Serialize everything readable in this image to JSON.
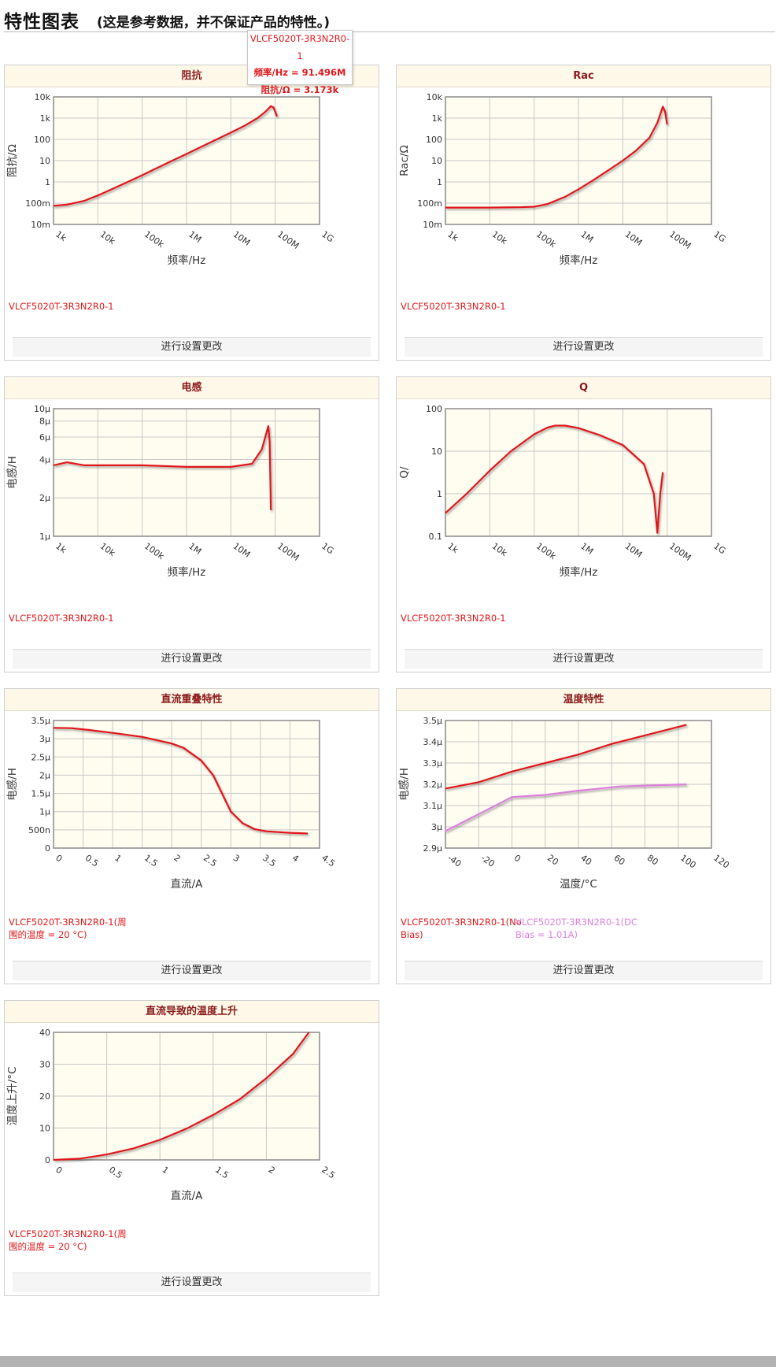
{
  "page": {
    "title": "特性图表",
    "subtitle": "(这是参考数据，并不保证产品的特性。)",
    "settings_label": "进行设置更改"
  },
  "tooltip": {
    "series": "VLCF5020T-3R3N2R0-1",
    "freq": "频率/Hz = 91.496M",
    "value": "阻抗/Ω = 3.173k"
  },
  "colors": {
    "primary": "#e0191b",
    "secondary": "#dd7fdd",
    "plot_bg": "#fffcf0",
    "grid": "#c8c8c8"
  },
  "chart_data": [
    {
      "id": "impedance",
      "type": "line",
      "title": "阻抗",
      "xlabel": "频率/Hz",
      "ylabel": "阻抗/Ω",
      "xscale": "log",
      "yscale": "log",
      "xlim": [
        1000,
        1000000000
      ],
      "ylim": [
        0.01,
        10000
      ],
      "xticks": [
        [
          1000,
          "1k"
        ],
        [
          10000,
          "10k"
        ],
        [
          100000,
          "100k"
        ],
        [
          1000000,
          "1M"
        ],
        [
          10000000,
          "10M"
        ],
        [
          100000000,
          "100M"
        ],
        [
          1000000000,
          "1G"
        ]
      ],
      "yticks": [
        [
          0.01,
          "10m"
        ],
        [
          0.1,
          "100m"
        ],
        [
          1,
          "1"
        ],
        [
          10,
          "10"
        ],
        [
          100,
          "100"
        ],
        [
          1000,
          "1k"
        ],
        [
          10000,
          "10k"
        ]
      ],
      "series": [
        {
          "name": "VLCF5020T-3R3N2R0-1",
          "color": "#e0191b",
          "points": [
            [
              1000,
              0.075
            ],
            [
              2000,
              0.085
            ],
            [
              5000,
              0.13
            ],
            [
              10000,
              0.23
            ],
            [
              20000,
              0.44
            ],
            [
              50000,
              1.05
            ],
            [
              100000,
              2.07
            ],
            [
              200000,
              4.15
            ],
            [
              500000,
              10.4
            ],
            [
              1000000,
              20.7
            ],
            [
              2000000,
              41.5
            ],
            [
              5000000,
              104
            ],
            [
              10000000,
              208
            ],
            [
              20000000,
              430
            ],
            [
              40000000,
              1000
            ],
            [
              60000000,
              2000
            ],
            [
              80000000,
              3700
            ],
            [
              91496000,
              3173
            ],
            [
              100000000,
              2000
            ],
            [
              110000000,
              1200
            ]
          ]
        }
      ]
    },
    {
      "id": "rac",
      "type": "line",
      "title": "Rac",
      "xlabel": "频率/Hz",
      "ylabel": "Rac/Ω",
      "xscale": "log",
      "yscale": "log",
      "xlim": [
        1000,
        1000000000
      ],
      "ylim": [
        0.01,
        10000
      ],
      "xticks": [
        [
          1000,
          "1k"
        ],
        [
          10000,
          "10k"
        ],
        [
          100000,
          "100k"
        ],
        [
          1000000,
          "1M"
        ],
        [
          10000000,
          "10M"
        ],
        [
          100000000,
          "100M"
        ],
        [
          1000000000,
          "1G"
        ]
      ],
      "yticks": [
        [
          0.01,
          "10m"
        ],
        [
          0.1,
          "100m"
        ],
        [
          1,
          "1"
        ],
        [
          10,
          "10"
        ],
        [
          100,
          "100"
        ],
        [
          1000,
          "1k"
        ],
        [
          10000,
          "10k"
        ]
      ],
      "series": [
        {
          "name": "VLCF5020T-3R3N2R0-1",
          "color": "#e0191b",
          "points": [
            [
              1000,
              0.062
            ],
            [
              10000,
              0.062
            ],
            [
              50000,
              0.065
            ],
            [
              100000,
              0.068
            ],
            [
              200000,
              0.09
            ],
            [
              500000,
              0.2
            ],
            [
              1000000,
              0.45
            ],
            [
              2000000,
              1.1
            ],
            [
              5000000,
              3.8
            ],
            [
              10000000,
              10
            ],
            [
              20000000,
              30
            ],
            [
              40000000,
              120
            ],
            [
              60000000,
              600
            ],
            [
              80000000,
              3500
            ],
            [
              90000000,
              2000
            ],
            [
              100000000,
              500
            ]
          ]
        }
      ]
    },
    {
      "id": "inductance",
      "type": "line",
      "title": "电感",
      "xlabel": "频率/Hz",
      "ylabel": "电感/H",
      "xscale": "log",
      "yscale": "log",
      "xlim": [
        1000,
        1000000000
      ],
      "ylim": [
        1e-06,
        1e-05
      ],
      "xticks": [
        [
          1000,
          "1k"
        ],
        [
          10000,
          "10k"
        ],
        [
          100000,
          "100k"
        ],
        [
          1000000,
          "1M"
        ],
        [
          10000000,
          "10M"
        ],
        [
          100000000,
          "100M"
        ],
        [
          1000000000,
          "1G"
        ]
      ],
      "yticks": [
        [
          1e-06,
          "1μ"
        ],
        [
          2e-06,
          "2μ"
        ],
        [
          4e-06,
          "4μ"
        ],
        [
          6e-06,
          "6μ"
        ],
        [
          8e-06,
          "8μ"
        ],
        [
          1e-05,
          "10μ"
        ]
      ],
      "series": [
        {
          "name": "VLCF5020T-3R3N2R0-1",
          "color": "#e0191b",
          "points": [
            [
              1000,
              3.6e-06
            ],
            [
              2000,
              3.8e-06
            ],
            [
              5000,
              3.6e-06
            ],
            [
              10000,
              3.6e-06
            ],
            [
              100000,
              3.6e-06
            ],
            [
              1000000,
              3.5e-06
            ],
            [
              10000000,
              3.5e-06
            ],
            [
              30000000,
              3.7e-06
            ],
            [
              50000000,
              4.8e-06
            ],
            [
              70000000,
              7.3e-06
            ],
            [
              75000000,
              5.5e-06
            ],
            [
              80000000,
              1.6e-06
            ]
          ]
        }
      ]
    },
    {
      "id": "q",
      "type": "line",
      "title": "Q",
      "xlabel": "频率/Hz",
      "ylabel": "Q/",
      "xscale": "log",
      "yscale": "log",
      "xlim": [
        1000,
        1000000000
      ],
      "ylim": [
        0.1,
        100
      ],
      "xticks": [
        [
          1000,
          "1k"
        ],
        [
          10000,
          "10k"
        ],
        [
          100000,
          "100k"
        ],
        [
          1000000,
          "1M"
        ],
        [
          10000000,
          "10M"
        ],
        [
          100000000,
          "100M"
        ],
        [
          1000000000,
          "1G"
        ]
      ],
      "yticks": [
        [
          0.1,
          "0.1"
        ],
        [
          1,
          "1"
        ],
        [
          10,
          "10"
        ],
        [
          100,
          "100"
        ]
      ],
      "series": [
        {
          "name": "VLCF5020T-3R3N2R0-1",
          "color": "#e0191b",
          "points": [
            [
              1000,
              0.35
            ],
            [
              3000,
              1.0
            ],
            [
              10000,
              3.5
            ],
            [
              30000,
              10
            ],
            [
              100000,
              25
            ],
            [
              200000,
              36
            ],
            [
              300000,
              40
            ],
            [
              500000,
              40
            ],
            [
              1000000,
              35
            ],
            [
              3000000,
              24
            ],
            [
              10000000,
              14
            ],
            [
              30000000,
              5
            ],
            [
              50000000,
              1
            ],
            [
              60000000,
              0.12
            ],
            [
              70000000,
              1
            ],
            [
              80000000,
              3.2
            ]
          ]
        }
      ]
    },
    {
      "id": "dc_bias",
      "type": "line",
      "title": "直流重叠特性",
      "xlabel": "直流/A",
      "ylabel": "电感/H",
      "xscale": "linear",
      "yscale": "linear",
      "xlim": [
        0,
        4.5
      ],
      "ylim": [
        0,
        3.5e-06
      ],
      "xticks": [
        [
          0,
          "0"
        ],
        [
          0.5,
          "0.5"
        ],
        [
          1,
          "1"
        ],
        [
          1.5,
          "1.5"
        ],
        [
          2,
          "2"
        ],
        [
          2.5,
          "2.5"
        ],
        [
          3,
          "3"
        ],
        [
          3.5,
          "3.5"
        ],
        [
          4,
          "4"
        ],
        [
          4.5,
          "4.5"
        ]
      ],
      "yticks": [
        [
          0,
          "0"
        ],
        [
          5e-07,
          "500n"
        ],
        [
          1e-06,
          "1μ"
        ],
        [
          1.5e-06,
          "1.5μ"
        ],
        [
          2e-06,
          "2μ"
        ],
        [
          2.5e-06,
          "2.5μ"
        ],
        [
          3e-06,
          "3μ"
        ],
        [
          3.5e-06,
          "3.5μ"
        ]
      ],
      "series": [
        {
          "name": "VLCF5020T-3R3N2R0-1(周围的温度 = 20 °C)",
          "color": "#e0191b",
          "points": [
            [
              0,
              3.3e-06
            ],
            [
              0.3,
              3.29e-06
            ],
            [
              0.6,
              3.24e-06
            ],
            [
              1.0,
              3.16e-06
            ],
            [
              1.5,
              3.05e-06
            ],
            [
              2.0,
              2.87e-06
            ],
            [
              2.2,
              2.75e-06
            ],
            [
              2.5,
              2.4e-06
            ],
            [
              2.7,
              2e-06
            ],
            [
              2.85,
              1.5e-06
            ],
            [
              3.0,
              1e-06
            ],
            [
              3.2,
              6.8e-07
            ],
            [
              3.4,
              5.2e-07
            ],
            [
              3.6,
              4.6e-07
            ],
            [
              4.0,
              4.2e-07
            ],
            [
              4.3,
              4e-07
            ]
          ]
        }
      ]
    },
    {
      "id": "temperature",
      "type": "line",
      "title": "温度特性",
      "xlabel": "温度/°C",
      "ylabel": "电感/H",
      "xscale": "linear",
      "yscale": "linear",
      "xlim": [
        -40,
        120
      ],
      "ylim": [
        2.9e-06,
        3.5e-06
      ],
      "xticks": [
        [
          -40,
          "-40"
        ],
        [
          -20,
          "-20"
        ],
        [
          0,
          "0"
        ],
        [
          20,
          "20"
        ],
        [
          40,
          "40"
        ],
        [
          60,
          "60"
        ],
        [
          80,
          "80"
        ],
        [
          100,
          "100"
        ],
        [
          120,
          "120"
        ]
      ],
      "yticks": [
        [
          2.9e-06,
          "2.9μ"
        ],
        [
          3e-06,
          "3μ"
        ],
        [
          3.1e-06,
          "3.1μ"
        ],
        [
          3.2e-06,
          "3.2μ"
        ],
        [
          3.3e-06,
          "3.3μ"
        ],
        [
          3.4e-06,
          "3.4μ"
        ],
        [
          3.5e-06,
          "3.5μ"
        ]
      ],
      "series": [
        {
          "name": "VLCF5020T-3R3N2R0-1(No Bias)",
          "color": "#e0191b",
          "points": [
            [
              -40,
              3.18e-06
            ],
            [
              -20,
              3.21e-06
            ],
            [
              0,
              3.26e-06
            ],
            [
              20,
              3.3e-06
            ],
            [
              40,
              3.34e-06
            ],
            [
              60,
              3.39e-06
            ],
            [
              80,
              3.43e-06
            ],
            [
              105,
              3.48e-06
            ]
          ]
        },
        {
          "name": "VLCF5020T-3R3N2R0-1(DC Bias = 1.01A)",
          "color": "#dd7fdd",
          "points": [
            [
              -40,
              2.98e-06
            ],
            [
              -20,
              3.06e-06
            ],
            [
              0,
              3.14e-06
            ],
            [
              20,
              3.15e-06
            ],
            [
              40,
              3.17e-06
            ],
            [
              65,
              3.19e-06
            ],
            [
              105,
              3.2e-06
            ]
          ]
        }
      ]
    },
    {
      "id": "temp_rise",
      "type": "line",
      "title": "直流导致的温度上升",
      "xlabel": "直流/A",
      "ylabel": "温度上升/°C",
      "xscale": "linear",
      "yscale": "linear",
      "xlim": [
        0,
        2.5
      ],
      "ylim": [
        0,
        40
      ],
      "xticks": [
        [
          0,
          "0"
        ],
        [
          0.5,
          "0.5"
        ],
        [
          1,
          "1"
        ],
        [
          1.5,
          "1.5"
        ],
        [
          2,
          "2"
        ],
        [
          2.5,
          "2.5"
        ]
      ],
      "yticks": [
        [
          0,
          "0"
        ],
        [
          10,
          "10"
        ],
        [
          20,
          "20"
        ],
        [
          30,
          "30"
        ],
        [
          40,
          "40"
        ]
      ],
      "series": [
        {
          "name": "VLCF5020T-3R3N2R0-1(周围的温度 = 20 °C)",
          "color": "#e0191b",
          "points": [
            [
              0,
              0
            ],
            [
              0.25,
              0.4
            ],
            [
              0.5,
              1.7
            ],
            [
              0.75,
              3.6
            ],
            [
              1.0,
              6.3
            ],
            [
              1.25,
              9.8
            ],
            [
              1.5,
              14.1
            ],
            [
              1.75,
              19.0
            ],
            [
              2.0,
              25.6
            ],
            [
              2.25,
              33.2
            ],
            [
              2.4,
              40
            ]
          ]
        }
      ]
    }
  ]
}
